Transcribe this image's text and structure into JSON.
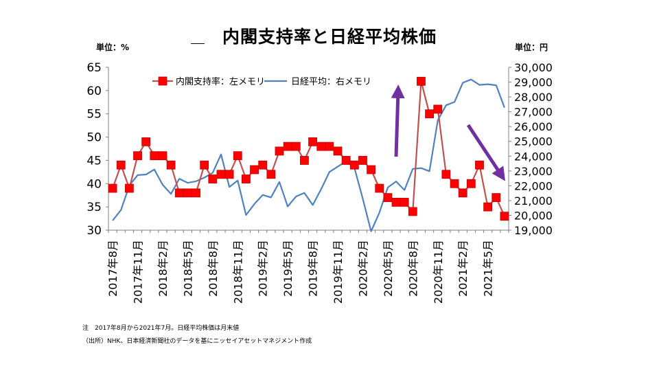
{
  "chart_data": {
    "type": "line",
    "title": "内閣支持率と日経平均株価",
    "left_unit_label": "単位：%",
    "right_unit_label": "単位：円",
    "left_axis": {
      "ylim": [
        30,
        65
      ],
      "ticks": [
        "65",
        "60",
        "55",
        "50",
        "45",
        "40",
        "35",
        "30"
      ]
    },
    "right_axis": {
      "ylim": [
        19000,
        30000
      ],
      "ticks": [
        "30,000",
        "29,000",
        "28,000",
        "27,000",
        "26,000",
        "25,000",
        "24,000",
        "23,000",
        "22,000",
        "21,000",
        "20,000",
        "19,000"
      ]
    },
    "x_tick_labels": [
      "2017年8月",
      "2017年11月",
      "2018年2月",
      "2018年5月",
      "2018年8月",
      "2018年11月",
      "2019年2月",
      "2019年5月",
      "2019年8月",
      "2019年11月",
      "2020年2月",
      "2020年5月",
      "2020年8月",
      "2020年11月",
      "2021年2月",
      "2021年5月"
    ],
    "x": [
      "2017-08",
      "2017-09",
      "2017-10",
      "2017-11",
      "2017-12",
      "2018-01",
      "2018-02",
      "2018-03",
      "2018-04",
      "2018-05",
      "2018-06",
      "2018-07",
      "2018-08",
      "2018-09",
      "2018-10",
      "2018-11",
      "2018-12",
      "2019-01",
      "2019-02",
      "2019-03",
      "2019-04",
      "2019-05",
      "2019-06",
      "2019-07",
      "2019-08",
      "2019-09",
      "2019-10",
      "2019-11",
      "2019-12",
      "2020-01",
      "2020-02",
      "2020-03",
      "2020-04",
      "2020-05",
      "2020-06",
      "2020-07",
      "2020-08",
      "2020-09",
      "2020-10",
      "2020-11",
      "2020-12",
      "2021-01",
      "2021-02",
      "2021-03",
      "2021-04",
      "2021-05",
      "2021-06",
      "2021-07"
    ],
    "series": [
      {
        "name": "内閣支持率：左メモリ",
        "axis": "left",
        "color": "#c0504d",
        "marker_color": "#ff0000",
        "values": [
          39,
          44,
          39,
          46,
          49,
          46,
          46,
          44,
          38,
          38,
          38,
          44,
          41,
          42,
          42,
          46,
          41,
          43,
          44,
          42,
          47,
          48,
          48,
          45,
          49,
          48,
          48,
          47,
          45,
          44,
          45,
          43,
          39,
          37,
          36,
          36,
          34,
          62,
          55,
          56,
          42,
          40,
          38,
          40,
          44,
          35,
          37,
          33
        ]
      },
      {
        "name": "日経平均：右メモリ",
        "axis": "right",
        "color": "#4f81bd",
        "values": [
          19650,
          20360,
          22010,
          22720,
          22760,
          23100,
          22070,
          21450,
          22470,
          22200,
          22300,
          22550,
          22870,
          24120,
          21920,
          22350,
          20020,
          20770,
          21380,
          21210,
          22260,
          20600,
          21280,
          21520,
          20700,
          21760,
          22930,
          23290,
          23660,
          23210,
          21140,
          18920,
          20190,
          21880,
          22290,
          21710,
          23140,
          23190,
          22980,
          26430,
          27440,
          27660,
          28960,
          29180,
          28810,
          28860,
          28790,
          27280
        ]
      }
    ],
    "annotations": [
      "up-arrow",
      "down-arrow"
    ],
    "legend": "top-center",
    "grid": false
  },
  "note": "注　2017年8月から2021年7月。日経平均株価は月末値",
  "source": "（出所）NHK、日本経済新聞社のデータを基にニッセイアセットマネジメント作成"
}
